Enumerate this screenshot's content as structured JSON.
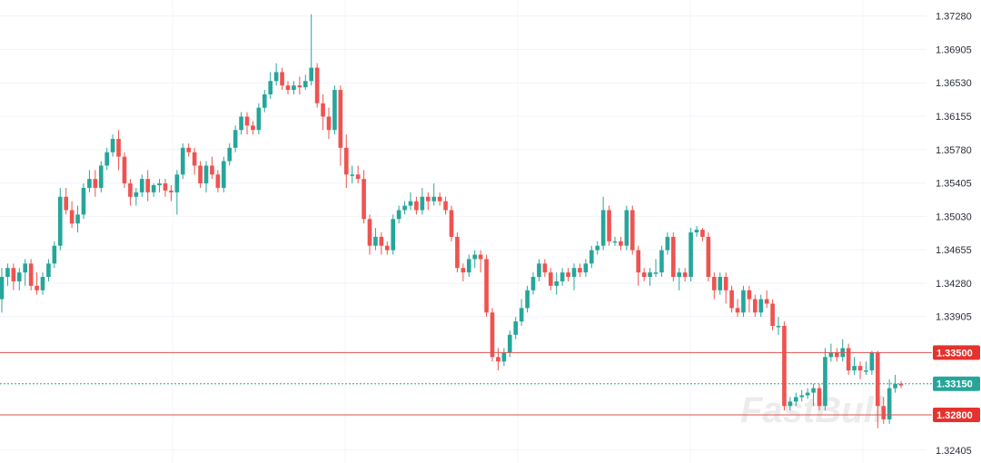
{
  "chart_data": {
    "type": "candlestick",
    "title": "",
    "xlabel": "",
    "ylabel": "",
    "ylim": [
      1.3226,
      1.3746
    ],
    "grid": true,
    "y_ticks": [
      "1.37280",
      "1.36905",
      "1.36530",
      "1.36155",
      "1.35780",
      "1.35405",
      "1.35030",
      "1.34655",
      "1.34280",
      "1.33905",
      "1.32405"
    ],
    "y_tick_values": [
      1.3728,
      1.36905,
      1.3653,
      1.36155,
      1.3578,
      1.35405,
      1.3503,
      1.34655,
      1.3428,
      1.33905,
      1.32405
    ],
    "levels": [
      {
        "value": 1.335,
        "label": "1.33500",
        "style": "solid",
        "color": "#d9534f"
      },
      {
        "value": 1.3315,
        "label": "1.33150",
        "style": "dotted",
        "color": "#26a69a"
      },
      {
        "value": 1.328,
        "label": "1.32800",
        "style": "solid",
        "color": "#d9534f"
      }
    ],
    "up_color": "#26a69a",
    "down_color": "#ef5350",
    "candles": [
      [
        1.341,
        1.3435,
        1.3445,
        1.3395
      ],
      [
        1.3435,
        1.3445,
        1.345,
        1.3425
      ],
      [
        1.3445,
        1.343,
        1.345,
        1.342
      ],
      [
        1.343,
        1.344,
        1.3445,
        1.342
      ],
      [
        1.344,
        1.345,
        1.3455,
        1.3425
      ],
      [
        1.345,
        1.3425,
        1.3455,
        1.342
      ],
      [
        1.3425,
        1.342,
        1.344,
        1.3415
      ],
      [
        1.342,
        1.3435,
        1.344,
        1.3415
      ],
      [
        1.3435,
        1.345,
        1.3455,
        1.343
      ],
      [
        1.345,
        1.347,
        1.3475,
        1.3445
      ],
      [
        1.347,
        1.3525,
        1.3535,
        1.3465
      ],
      [
        1.3525,
        1.351,
        1.3535,
        1.3505
      ],
      [
        1.351,
        1.3495,
        1.352,
        1.349
      ],
      [
        1.3495,
        1.3505,
        1.3515,
        1.3485
      ],
      [
        1.3505,
        1.3535,
        1.354,
        1.35
      ],
      [
        1.3535,
        1.3545,
        1.3555,
        1.353
      ],
      [
        1.3545,
        1.3535,
        1.3555,
        1.3525
      ],
      [
        1.3535,
        1.356,
        1.3565,
        1.353
      ],
      [
        1.356,
        1.3575,
        1.358,
        1.3555
      ],
      [
        1.3575,
        1.359,
        1.3595,
        1.357
      ],
      [
        1.359,
        1.357,
        1.36,
        1.3555
      ],
      [
        1.357,
        1.354,
        1.3575,
        1.3535
      ],
      [
        1.354,
        1.3525,
        1.3545,
        1.3515
      ],
      [
        1.3525,
        1.353,
        1.3535,
        1.3515
      ],
      [
        1.353,
        1.3545,
        1.355,
        1.3525
      ],
      [
        1.3545,
        1.353,
        1.3555,
        1.352
      ],
      [
        1.353,
        1.3538,
        1.354,
        1.3525
      ],
      [
        1.3538,
        1.354,
        1.3545,
        1.353
      ],
      [
        1.354,
        1.3532,
        1.3545,
        1.3525
      ],
      [
        1.3532,
        1.353,
        1.3538,
        1.352
      ],
      [
        1.353,
        1.355,
        1.3555,
        1.3505
      ],
      [
        1.355,
        1.358,
        1.3585,
        1.3545
      ],
      [
        1.358,
        1.3575,
        1.3585,
        1.357
      ],
      [
        1.3575,
        1.356,
        1.358,
        1.355
      ],
      [
        1.356,
        1.354,
        1.3565,
        1.3535
      ],
      [
        1.354,
        1.356,
        1.3565,
        1.353
      ],
      [
        1.356,
        1.355,
        1.357,
        1.3545
      ],
      [
        1.355,
        1.3535,
        1.3555,
        1.353
      ],
      [
        1.3535,
        1.3565,
        1.357,
        1.353
      ],
      [
        1.3565,
        1.358,
        1.3585,
        1.356
      ],
      [
        1.358,
        1.36,
        1.3605,
        1.3575
      ],
      [
        1.36,
        1.3615,
        1.362,
        1.3595
      ],
      [
        1.3615,
        1.3605,
        1.362,
        1.3595
      ],
      [
        1.3605,
        1.36,
        1.361,
        1.3595
      ],
      [
        1.36,
        1.3625,
        1.363,
        1.3595
      ],
      [
        1.3625,
        1.364,
        1.3645,
        1.362
      ],
      [
        1.364,
        1.3655,
        1.3665,
        1.3635
      ],
      [
        1.3655,
        1.3665,
        1.3675,
        1.365
      ],
      [
        1.3665,
        1.365,
        1.367,
        1.3645
      ],
      [
        1.365,
        1.3645,
        1.3655,
        1.364
      ],
      [
        1.3645,
        1.365,
        1.3655,
        1.364
      ],
      [
        1.365,
        1.3648,
        1.366,
        1.364
      ],
      [
        1.3648,
        1.3655,
        1.3662,
        1.3645
      ],
      [
        1.3655,
        1.367,
        1.373,
        1.365
      ],
      [
        1.367,
        1.363,
        1.3675,
        1.3625
      ],
      [
        1.363,
        1.3615,
        1.364,
        1.36
      ],
      [
        1.3615,
        1.36,
        1.3625,
        1.359
      ],
      [
        1.36,
        1.3645,
        1.365,
        1.3595
      ],
      [
        1.3645,
        1.358,
        1.365,
        1.356
      ],
      [
        1.358,
        1.355,
        1.3595,
        1.3535
      ],
      [
        1.355,
        1.355,
        1.356,
        1.354
      ],
      [
        1.355,
        1.3545,
        1.356,
        1.354
      ],
      [
        1.3545,
        1.35,
        1.3555,
        1.3495
      ],
      [
        1.35,
        1.347,
        1.3505,
        1.346
      ],
      [
        1.347,
        1.348,
        1.349,
        1.3465
      ],
      [
        1.348,
        1.347,
        1.3485,
        1.346
      ],
      [
        1.347,
        1.3465,
        1.3475,
        1.346
      ],
      [
        1.3465,
        1.35,
        1.3505,
        1.346
      ],
      [
        1.35,
        1.351,
        1.3515,
        1.3495
      ],
      [
        1.351,
        1.3515,
        1.352,
        1.3505
      ],
      [
        1.3515,
        1.352,
        1.353,
        1.351
      ],
      [
        1.352,
        1.351,
        1.3525,
        1.3505
      ],
      [
        1.351,
        1.3525,
        1.3535,
        1.3505
      ],
      [
        1.3525,
        1.352,
        1.353,
        1.351
      ],
      [
        1.352,
        1.3525,
        1.354,
        1.3515
      ],
      [
        1.3525,
        1.352,
        1.353,
        1.3515
      ],
      [
        1.352,
        1.351,
        1.3525,
        1.3505
      ],
      [
        1.351,
        1.348,
        1.3515,
        1.3475
      ],
      [
        1.348,
        1.3445,
        1.3485,
        1.344
      ],
      [
        1.3445,
        1.344,
        1.345,
        1.343
      ],
      [
        1.344,
        1.3455,
        1.346,
        1.3435
      ],
      [
        1.3455,
        1.346,
        1.3465,
        1.3445
      ],
      [
        1.346,
        1.3455,
        1.3465,
        1.344
      ],
      [
        1.3455,
        1.3395,
        1.346,
        1.339
      ],
      [
        1.3395,
        1.3345,
        1.34,
        1.334
      ],
      [
        1.3345,
        1.334,
        1.3355,
        1.333
      ],
      [
        1.334,
        1.335,
        1.3355,
        1.3335
      ],
      [
        1.335,
        1.337,
        1.3375,
        1.3345
      ],
      [
        1.337,
        1.3385,
        1.339,
        1.3365
      ],
      [
        1.3385,
        1.34,
        1.341,
        1.338
      ],
      [
        1.34,
        1.342,
        1.3425,
        1.3395
      ],
      [
        1.342,
        1.3435,
        1.344,
        1.3415
      ],
      [
        1.3435,
        1.345,
        1.3455,
        1.343
      ],
      [
        1.345,
        1.344,
        1.3455,
        1.3435
      ],
      [
        1.344,
        1.3425,
        1.3445,
        1.342
      ],
      [
        1.3425,
        1.343,
        1.344,
        1.3415
      ],
      [
        1.343,
        1.344,
        1.3445,
        1.3425
      ],
      [
        1.344,
        1.3435,
        1.3445,
        1.343
      ],
      [
        1.3435,
        1.3445,
        1.345,
        1.342
      ],
      [
        1.3445,
        1.344,
        1.345,
        1.3435
      ],
      [
        1.344,
        1.345,
        1.3455,
        1.3435
      ],
      [
        1.345,
        1.3465,
        1.347,
        1.3445
      ],
      [
        1.3465,
        1.347,
        1.3475,
        1.346
      ],
      [
        1.347,
        1.351,
        1.3525,
        1.3465
      ],
      [
        1.351,
        1.3475,
        1.3515,
        1.347
      ],
      [
        1.3475,
        1.3475,
        1.348,
        1.347
      ],
      [
        1.3475,
        1.347,
        1.348,
        1.3465
      ],
      [
        1.347,
        1.351,
        1.3515,
        1.3465
      ],
      [
        1.351,
        1.3465,
        1.3515,
        1.346
      ],
      [
        1.3465,
        1.344,
        1.347,
        1.3425
      ],
      [
        1.344,
        1.3435,
        1.3445,
        1.343
      ],
      [
        1.3435,
        1.344,
        1.3445,
        1.3425
      ],
      [
        1.344,
        1.344,
        1.3455,
        1.3435
      ],
      [
        1.344,
        1.3465,
        1.347,
        1.3435
      ],
      [
        1.3465,
        1.348,
        1.3485,
        1.346
      ],
      [
        1.348,
        1.3435,
        1.3485,
        1.343
      ],
      [
        1.3435,
        1.344,
        1.3445,
        1.342
      ],
      [
        1.344,
        1.3435,
        1.3445,
        1.343
      ],
      [
        1.3435,
        1.3485,
        1.349,
        1.343
      ],
      [
        1.3485,
        1.3488,
        1.3492,
        1.348
      ],
      [
        1.3488,
        1.348,
        1.349,
        1.3475
      ],
      [
        1.348,
        1.3435,
        1.3485,
        1.343
      ],
      [
        1.3435,
        1.342,
        1.344,
        1.341
      ],
      [
        1.342,
        1.3435,
        1.344,
        1.3415
      ],
      [
        1.3435,
        1.342,
        1.344,
        1.3405
      ],
      [
        1.342,
        1.34,
        1.3425,
        1.3395
      ],
      [
        1.34,
        1.3395,
        1.341,
        1.339
      ],
      [
        1.3395,
        1.342,
        1.3425,
        1.339
      ],
      [
        1.342,
        1.341,
        1.3425,
        1.3395
      ],
      [
        1.341,
        1.3395,
        1.3415,
        1.339
      ],
      [
        1.3395,
        1.341,
        1.3415,
        1.339
      ],
      [
        1.341,
        1.3405,
        1.342,
        1.34
      ],
      [
        1.3405,
        1.338,
        1.341,
        1.3375
      ],
      [
        1.338,
        1.338,
        1.339,
        1.337
      ],
      [
        1.338,
        1.329,
        1.3385,
        1.3285
      ],
      [
        1.329,
        1.3295,
        1.33,
        1.3285
      ],
      [
        1.3295,
        1.33,
        1.3305,
        1.329
      ],
      [
        1.33,
        1.3302,
        1.3308,
        1.3295
      ],
      [
        1.3302,
        1.3305,
        1.331,
        1.3298
      ],
      [
        1.3305,
        1.331,
        1.3315,
        1.329
      ],
      [
        1.331,
        1.329,
        1.3315,
        1.3285
      ],
      [
        1.329,
        1.3345,
        1.3355,
        1.3285
      ],
      [
        1.3345,
        1.335,
        1.336,
        1.334
      ],
      [
        1.335,
        1.3345,
        1.3355,
        1.334
      ],
      [
        1.3345,
        1.3355,
        1.3365,
        1.334
      ],
      [
        1.3355,
        1.333,
        1.336,
        1.3325
      ],
      [
        1.333,
        1.3335,
        1.3345,
        1.3325
      ],
      [
        1.3335,
        1.333,
        1.334,
        1.332
      ],
      [
        1.333,
        1.333,
        1.334,
        1.3325
      ],
      [
        1.333,
        1.335,
        1.3352,
        1.3325
      ],
      [
        1.335,
        1.329,
        1.3352,
        1.3265
      ],
      [
        1.329,
        1.3275,
        1.33,
        1.327
      ],
      [
        1.3275,
        1.331,
        1.332,
        1.327
      ],
      [
        1.331,
        1.3315,
        1.3325,
        1.3305
      ],
      [
        1.3315,
        1.3313,
        1.3318,
        1.331
      ]
    ]
  },
  "watermark": "FastBull"
}
